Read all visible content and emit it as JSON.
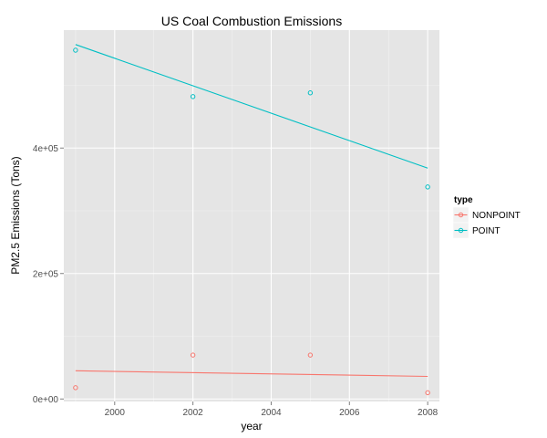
{
  "chart_data": {
    "type": "scatter",
    "title": "US Coal Combustion Emissions",
    "xlabel": "year",
    "ylabel": "PM2.5 Emissions (Tons)",
    "xlim": [
      1998.7,
      2008.3
    ],
    "ylim": [
      -4000,
      588000
    ],
    "x_ticks": [
      2000,
      2002,
      2004,
      2006,
      2008
    ],
    "x_tick_labels": [
      "2000",
      "2002",
      "2004",
      "2006",
      "2008"
    ],
    "y_ticks": [
      0,
      200000,
      400000
    ],
    "y_tick_labels": [
      "0e+00",
      "2e+05",
      "4e+05"
    ],
    "grid": true,
    "legend": {
      "title": "type",
      "position": "right"
    },
    "x": [
      1999,
      2002,
      2005,
      2008
    ],
    "series": [
      {
        "name": "NONPOINT",
        "color": "#F8766D",
        "values": [
          18000,
          70000,
          70000,
          10000
        ],
        "trend": {
          "from": [
            1999,
            45000
          ],
          "to": [
            2008,
            36000
          ]
        }
      },
      {
        "name": "POINT",
        "color": "#00BFC4",
        "values": [
          556000,
          482000,
          488000,
          338000
        ],
        "trend": {
          "from": [
            1999,
            565000
          ],
          "to": [
            2008,
            368000
          ]
        }
      }
    ]
  }
}
